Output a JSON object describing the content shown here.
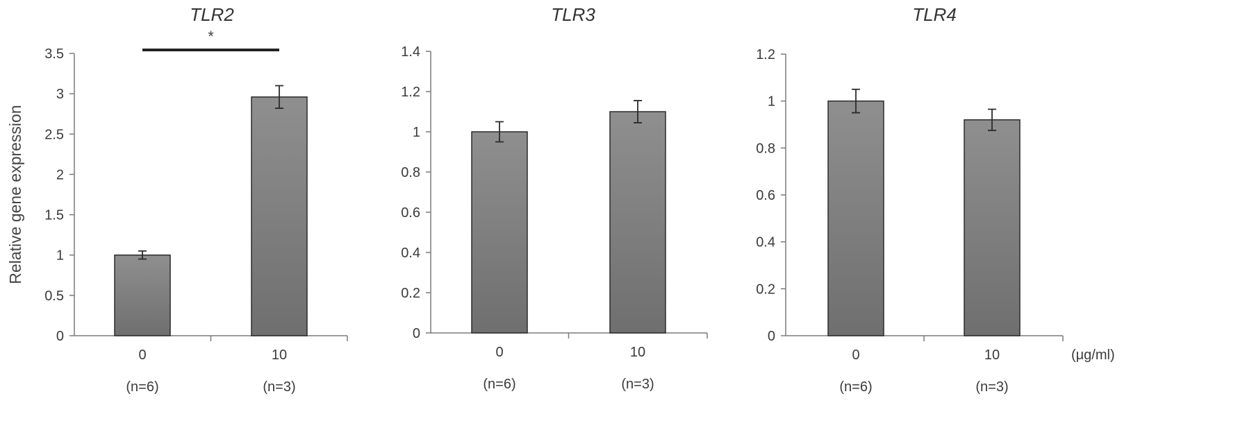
{
  "colors": {
    "bar_top": "#8f8f8f",
    "bar_bottom": "#6f6f6f",
    "bar_stroke": "#2b2b2b"
  },
  "shared": {
    "ylabel": "Relative gene expression",
    "unit_label": "(μg/ml)"
  },
  "chart_data": [
    {
      "type": "bar",
      "title": "TLR2",
      "ylabel": "Relative gene expression",
      "categories": [
        "0",
        "10"
      ],
      "sample_sizes": [
        "(n=6)",
        "(n=3)"
      ],
      "values": [
        1.0,
        2.96
      ],
      "errors": [
        0.05,
        0.14
      ],
      "ylim": [
        0,
        3.5
      ],
      "yticks": [
        "0",
        "0.5",
        "1",
        "1.5",
        "2",
        "2.5",
        "3",
        "3.5"
      ],
      "significance": {
        "between": [
          0,
          1
        ],
        "label": "*"
      },
      "grid": false,
      "legend": "none"
    },
    {
      "type": "bar",
      "title": "TLR3",
      "categories": [
        "0",
        "10"
      ],
      "sample_sizes": [
        "(n=6)",
        "(n=3)"
      ],
      "values": [
        1.0,
        1.1
      ],
      "errors": [
        0.05,
        0.055
      ],
      "ylim": [
        0,
        1.4
      ],
      "yticks": [
        "0",
        "0.2",
        "0.4",
        "0.6",
        "0.8",
        "1",
        "1.2",
        "1.4"
      ],
      "grid": false,
      "legend": "none"
    },
    {
      "type": "bar",
      "title": "TLR4",
      "categories": [
        "0",
        "10"
      ],
      "sample_sizes": [
        "(n=6)",
        "(n=3)"
      ],
      "values": [
        1.0,
        0.92
      ],
      "errors": [
        0.05,
        0.045
      ],
      "ylim": [
        0,
        1.2
      ],
      "yticks": [
        "0",
        "0.2",
        "0.4",
        "0.6",
        "0.8",
        "1",
        "1.2"
      ],
      "xunit": "(μg/ml)",
      "grid": false,
      "legend": "none"
    }
  ]
}
